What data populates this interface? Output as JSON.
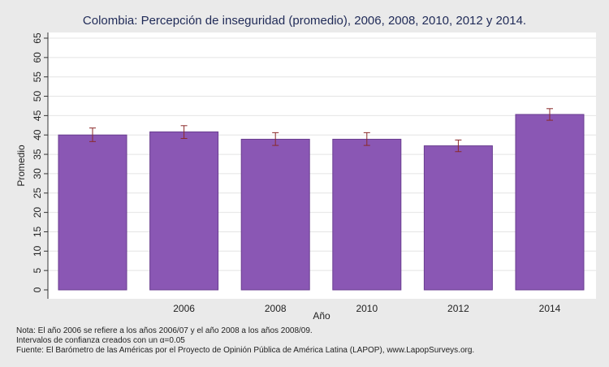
{
  "chart_data": {
    "type": "bar",
    "title": "Colombia: Percepción de inseguridad (promedio), 2006, 2008, 2010, 2012 y 2014.",
    "xlabel": "Año",
    "ylabel": "Promedio",
    "categories": [
      "",
      "2006",
      "2008",
      "2010",
      "2012",
      "2014"
    ],
    "values": [
      40.0,
      40.8,
      38.9,
      38.9,
      37.2,
      45.3
    ],
    "ci_low": [
      38.3,
      39.1,
      37.3,
      37.3,
      35.7,
      43.8
    ],
    "ci_high": [
      41.8,
      42.4,
      40.6,
      40.6,
      38.7,
      46.8
    ],
    "ylim": [
      0,
      65
    ],
    "yticks": [
      "0",
      "5",
      "10",
      "15",
      "20",
      "25",
      "30",
      "35",
      "40",
      "45",
      "50",
      "55",
      "60",
      "65"
    ],
    "grid": true,
    "legend": "none"
  },
  "colors": {
    "background": "#eaeaea",
    "plot_background": "#ffffff",
    "bar_fill": "#8a57b4",
    "bar_edge": "#6a3e90",
    "error_bar": "#8b2a2a",
    "grid": "#e4e4e4",
    "title": "#1f2a57"
  },
  "notes": [
    "Nota: El año 2006 se refiere a los años 2006/07 y el año 2008 a los años 2008/09.",
    "Intervalos de confianza creados con un α=0.05",
    "Fuente: El Barómetro de las Américas por el Proyecto de Opinión Pública de América Latina (LAPOP), www.LapopSurveys.org."
  ]
}
